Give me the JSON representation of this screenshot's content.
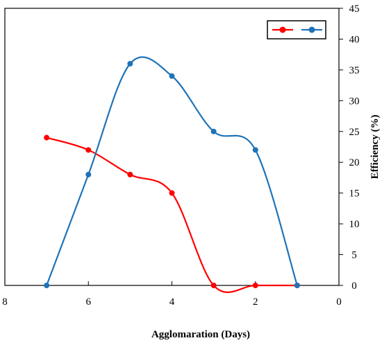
{
  "chart_data": {
    "type": "line",
    "title": "",
    "xlabel": "Agglomaration (Days)",
    "ylabel": "Efficiency (%)",
    "xlim": [
      8,
      0
    ],
    "ylim": [
      0,
      45
    ],
    "x_ticks": [
      8,
      6,
      4,
      2,
      0
    ],
    "y_ticks": [
      0,
      5,
      10,
      15,
      20,
      25,
      30,
      35,
      40,
      45
    ],
    "y_axis_position": "right",
    "grid": false,
    "legend": {
      "position": "top-right"
    },
    "series": [
      {
        "color": "#ff0000",
        "x": [
          7,
          6,
          5,
          4,
          3,
          2,
          1
        ],
        "y": [
          24,
          22,
          18,
          15,
          0,
          0,
          0
        ]
      },
      {
        "color": "#1e73b8",
        "x": [
          7,
          6,
          5,
          4,
          3,
          2,
          1
        ],
        "y": [
          0,
          18,
          36,
          34,
          25,
          22,
          0
        ]
      }
    ]
  }
}
